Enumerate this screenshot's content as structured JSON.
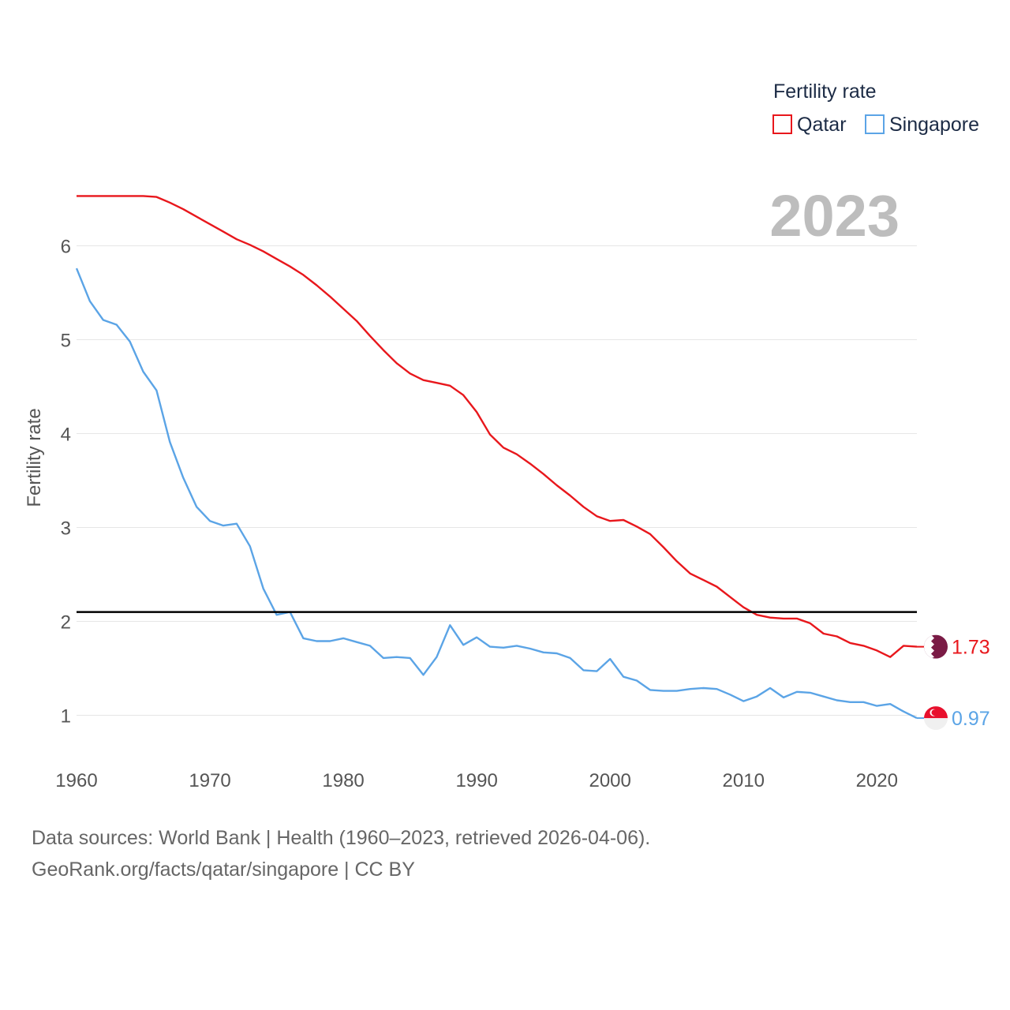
{
  "legend": {
    "title": "Fertility rate"
  },
  "year_label": "2023",
  "source": {
    "line1": "Data sources: World Bank | Health (1960–2023, retrieved 2026-04-06).",
    "line2": "GeoRank.org/facts/qatar/singapore | CC BY"
  },
  "colors": {
    "qatar": "#e8171c",
    "singapore": "#5ba4e6",
    "threshold": "#000000",
    "qatar_flag": "#7a1b45",
    "singapore_flag": "#e8102d"
  },
  "chart_data": {
    "type": "line",
    "title": "",
    "xlabel": "",
    "ylabel": "Fertility rate",
    "xlim": [
      1960,
      2023
    ],
    "ylim": [
      0.5,
      6.65
    ],
    "x_ticks": [
      1960,
      1970,
      1980,
      1990,
      2000,
      2010,
      2020
    ],
    "y_ticks": [
      1,
      2,
      3,
      4,
      5,
      6
    ],
    "reference_line": {
      "y": 2.1
    },
    "x": [
      1960,
      1961,
      1962,
      1963,
      1964,
      1965,
      1966,
      1967,
      1968,
      1969,
      1970,
      1971,
      1972,
      1973,
      1974,
      1975,
      1976,
      1977,
      1978,
      1979,
      1980,
      1981,
      1982,
      1983,
      1984,
      1985,
      1986,
      1987,
      1988,
      1989,
      1990,
      1991,
      1992,
      1993,
      1994,
      1995,
      1996,
      1997,
      1998,
      1999,
      2000,
      2001,
      2002,
      2003,
      2004,
      2005,
      2006,
      2007,
      2008,
      2009,
      2010,
      2011,
      2012,
      2013,
      2014,
      2015,
      2016,
      2017,
      2018,
      2019,
      2020,
      2021,
      2022,
      2023
    ],
    "series": [
      {
        "name": "Qatar",
        "end_label": "1.73",
        "values": [
          6.53,
          6.53,
          6.53,
          6.53,
          6.53,
          6.53,
          6.52,
          6.46,
          6.39,
          6.31,
          6.23,
          6.15,
          6.07,
          6.01,
          5.94,
          5.86,
          5.78,
          5.69,
          5.58,
          5.46,
          5.33,
          5.2,
          5.04,
          4.89,
          4.75,
          4.64,
          4.57,
          4.54,
          4.51,
          4.41,
          4.23,
          3.99,
          3.85,
          3.78,
          3.68,
          3.57,
          3.45,
          3.34,
          3.22,
          3.12,
          3.07,
          3.08,
          3.01,
          2.93,
          2.79,
          2.64,
          2.51,
          2.44,
          2.37,
          2.26,
          2.15,
          2.07,
          2.04,
          2.03,
          2.03,
          1.98,
          1.87,
          1.84,
          1.77,
          1.74,
          1.69,
          1.62,
          1.74,
          1.73
        ]
      },
      {
        "name": "Singapore",
        "end_label": "0.97",
        "values": [
          5.76,
          5.41,
          5.21,
          5.16,
          4.98,
          4.66,
          4.46,
          3.91,
          3.53,
          3.22,
          3.07,
          3.02,
          3.04,
          2.8,
          2.35,
          2.07,
          2.1,
          1.82,
          1.79,
          1.79,
          1.82,
          1.78,
          1.74,
          1.61,
          1.62,
          1.61,
          1.43,
          1.62,
          1.96,
          1.75,
          1.83,
          1.73,
          1.72,
          1.74,
          1.71,
          1.67,
          1.66,
          1.61,
          1.48,
          1.47,
          1.6,
          1.41,
          1.37,
          1.27,
          1.26,
          1.26,
          1.28,
          1.29,
          1.28,
          1.22,
          1.15,
          1.2,
          1.29,
          1.19,
          1.25,
          1.24,
          1.2,
          1.16,
          1.14,
          1.14,
          1.1,
          1.12,
          1.04,
          0.97
        ]
      }
    ]
  }
}
